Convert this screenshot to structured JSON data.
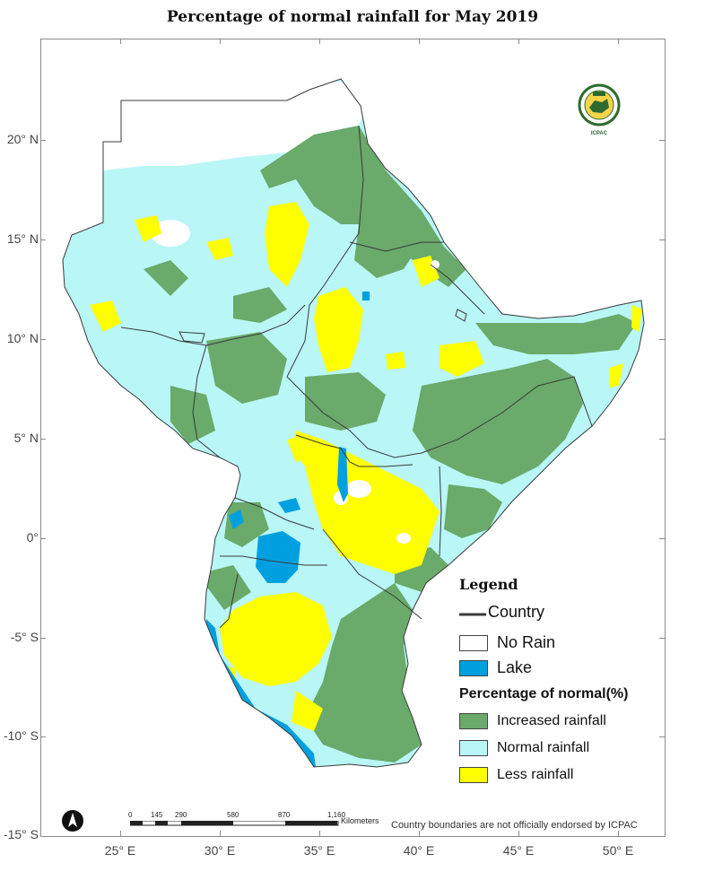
{
  "title": "Percentage of normal rainfall for  May 2019",
  "lat_labels": [
    "20° N",
    "15° N",
    "10° N",
    "5° N",
    "0°",
    "-5° S",
    "-10° S",
    "-15° S"
  ],
  "lon_labels": [
    "25° E",
    "30° E",
    "35° E",
    "40° E",
    "45° E",
    "50° E"
  ],
  "logo": {
    "name": "ICPAC",
    "icon": "igad-icpac-logo"
  },
  "legend": {
    "title": "Legend",
    "country": "Country",
    "no_rain": "No Rain",
    "lake": "Lake",
    "subtitle": "Percentage of normal(%)",
    "increased": "Increased rainfall",
    "normal": "Normal rainfall",
    "less": "Less rainfall"
  },
  "colors": {
    "increased": "#6aaa6a",
    "normal": "#b9f6f6",
    "less": "#ffff00",
    "lake": "#00a0e0",
    "no_rain": "#ffffff",
    "boundary": "#3a3a3a"
  },
  "scale": {
    "ticks": [
      "0",
      "145",
      "290",
      "580",
      "870",
      "1,160"
    ],
    "unit": "Kilometers"
  },
  "north_arrow": "north-arrow-icon",
  "disclaimer": "Country boundaries are not officially endorsed by ICPAC"
}
